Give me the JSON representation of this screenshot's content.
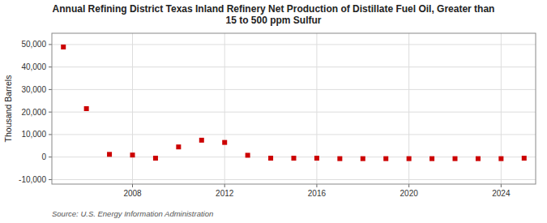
{
  "chart_data": {
    "type": "scatter",
    "title": "Annual Refining District Texas Inland Refinery Net Production of Distillate Fuel Oil, Greater than\n15 to 500 ppm Sulfur",
    "ylabel": "Thousand Barrels",
    "source": "Source: U.S. Energy Information Administration",
    "x": [
      2005,
      2006,
      2007,
      2008,
      2009,
      2010,
      2011,
      2012,
      2013,
      2014,
      2015,
      2016,
      2017,
      2018,
      2019,
      2020,
      2021,
      2022,
      2023,
      2024,
      2025
    ],
    "values": [
      48900,
      21500,
      1200,
      900,
      -500,
      4500,
      7500,
      6500,
      800,
      -500,
      -500,
      -500,
      -700,
      -700,
      -700,
      -700,
      -700,
      -700,
      -700,
      -700,
      -500
    ],
    "color": "#cc0000",
    "marker": "square",
    "xlim": [
      2004.5,
      2025.5
    ],
    "xticks": [
      2008,
      2012,
      2016,
      2020,
      2024
    ],
    "ylim": [
      -12000,
      55000
    ],
    "yticks": [
      {
        "value": -10000,
        "label": "-10,000"
      },
      0,
      {
        "value": 10000,
        "label": "10,000"
      },
      {
        "value": 20000,
        "label": "20,000"
      },
      {
        "value": 30000,
        "label": "30,000"
      },
      {
        "value": 40000,
        "label": "40,000"
      },
      {
        "value": 50000,
        "label": "50,000"
      }
    ],
    "grid": true
  }
}
